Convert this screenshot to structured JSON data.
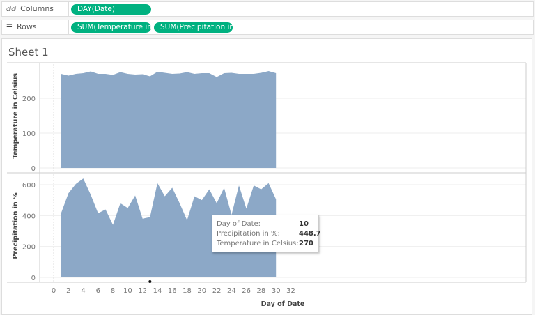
{
  "shelves": {
    "columns": {
      "label": "Columns",
      "icon": "columns-icon",
      "pills": [
        "DAY(Date)"
      ]
    },
    "rows": {
      "label": "Rows",
      "icon": "rows-icon",
      "pills": [
        "SUM(Temperature in..",
        "SUM(Precipitation in .."
      ]
    }
  },
  "sheet": {
    "title": "Sheet 1"
  },
  "tooltip": {
    "rows": [
      {
        "label": "Day of Date:",
        "value": "10"
      },
      {
        "label": "Precipitation in %:",
        "value": "448.7"
      },
      {
        "label": "Temperature in Celsius:",
        "value": "270"
      }
    ]
  },
  "chart_data": [
    {
      "type": "area",
      "ylabel": "Temperature in Celsius",
      "xlabel": "",
      "color": "#8ca8c7",
      "yticks": [
        0,
        100,
        200
      ],
      "ylim": [
        0,
        310
      ],
      "grid": true,
      "x": [
        1,
        2,
        3,
        4,
        5,
        6,
        7,
        8,
        9,
        10,
        11,
        12,
        13,
        14,
        15,
        16,
        17,
        18,
        19,
        20,
        21,
        22,
        23,
        24,
        25,
        26,
        27,
        28,
        29,
        30
      ],
      "values": [
        270,
        265,
        270,
        272,
        277,
        270,
        270,
        267,
        275,
        270,
        268,
        269,
        263,
        276,
        273,
        270,
        271,
        275,
        270,
        272,
        272,
        261,
        272,
        273,
        270,
        270,
        270,
        273,
        278,
        272
      ]
    },
    {
      "type": "area",
      "ylabel": "Precipitation in %",
      "xlabel": "Day of Date",
      "color": "#8ca8c7",
      "yticks": [
        0,
        200,
        400,
        600
      ],
      "ylim": [
        0,
        670
      ],
      "xlim": [
        -2,
        32
      ],
      "grid": true,
      "xticks": [
        0,
        2,
        4,
        6,
        8,
        10,
        12,
        14,
        16,
        18,
        20,
        22,
        24,
        26,
        28,
        30,
        32
      ],
      "x": [
        1,
        2,
        3,
        4,
        5,
        6,
        7,
        8,
        9,
        10,
        11,
        12,
        13,
        14,
        15,
        16,
        17,
        18,
        19,
        20,
        21,
        22,
        23,
        24,
        25,
        26,
        27,
        28,
        29,
        30
      ],
      "values": [
        415,
        545,
        605,
        640,
        535,
        415,
        440,
        340,
        480,
        448.7,
        530,
        380,
        390,
        610,
        525,
        580,
        480,
        370,
        525,
        500,
        570,
        480,
        580,
        405,
        595,
        445,
        595,
        570,
        610,
        505
      ]
    }
  ]
}
